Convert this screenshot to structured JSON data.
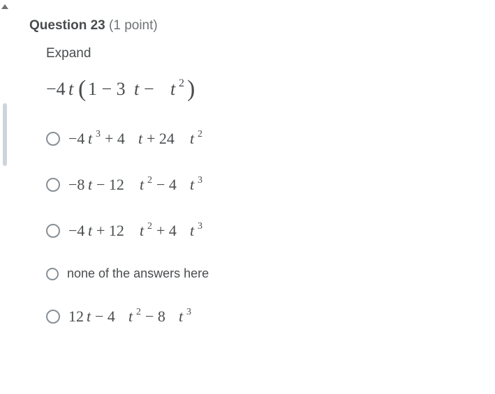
{
  "colors": {
    "text": "#494c4e",
    "muted": "#6e7376",
    "radio_border": "#878f95",
    "gutter_bar": "#cdd5dc",
    "background": "#ffffff"
  },
  "question": {
    "number_label": "Question 23",
    "points_label": "(1 point)",
    "instruction": "Expand",
    "expression_latex": "-4t(1 - 3t - t^2)"
  },
  "options": [
    {
      "id": "opt-a",
      "type": "math",
      "latex": "-4t^3 + 4t + 24t^2",
      "selected": false
    },
    {
      "id": "opt-b",
      "type": "math",
      "latex": "-8t - 12t^2 - 4t^3",
      "selected": false
    },
    {
      "id": "opt-c",
      "type": "math",
      "latex": "-4t + 12t^2 + 4t^3",
      "selected": false
    },
    {
      "id": "opt-d",
      "type": "text",
      "text": "none of the answers here",
      "selected": false
    },
    {
      "id": "opt-e",
      "type": "math",
      "latex": "12t - 4t^2 - 8t^3",
      "selected": false
    }
  ]
}
